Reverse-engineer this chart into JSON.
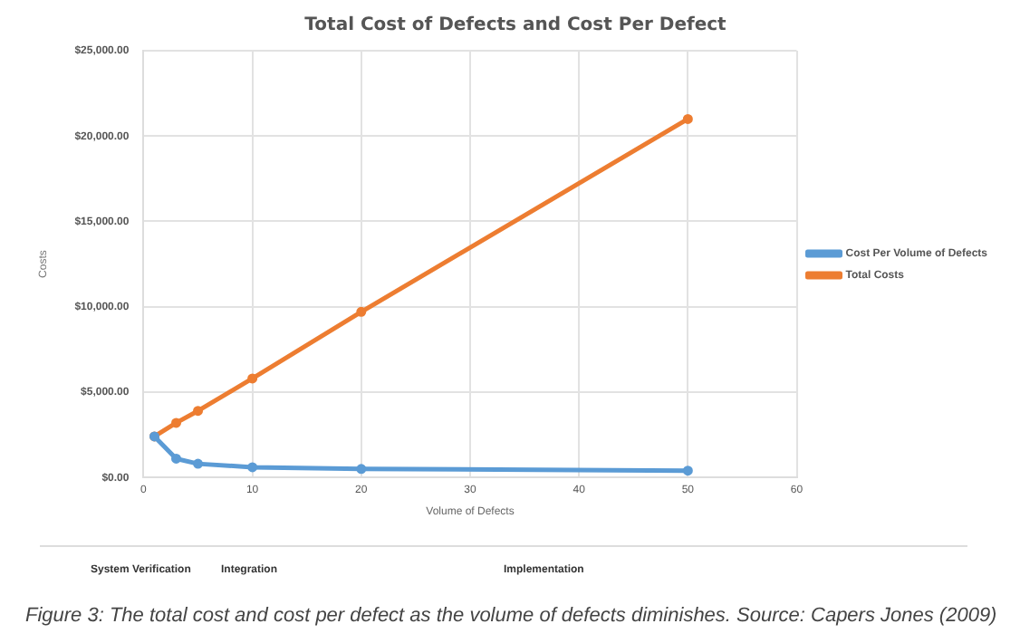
{
  "chart_data": {
    "type": "line",
    "title": "Total Cost of Defects and Cost Per Defect",
    "xlabel": "Volume of Defects",
    "ylabel": "Costs",
    "x": [
      1,
      3,
      5,
      10,
      20,
      50
    ],
    "series": [
      {
        "name": "Cost Per Volume of Defects",
        "color": "#5b9bd5",
        "values": [
          2400,
          1100,
          800,
          600,
          500,
          400
        ]
      },
      {
        "name": "Total Costs",
        "color": "#ed7d31",
        "values": [
          2400,
          3200,
          3900,
          5800,
          9700,
          21000
        ]
      }
    ],
    "xlim": [
      0,
      60
    ],
    "xticks": [
      0,
      10,
      20,
      30,
      40,
      50,
      60
    ],
    "ylim": [
      0,
      25000
    ],
    "yticks": [
      {
        "value": 0,
        "label": "$0.00"
      },
      {
        "value": 5000,
        "label": "$5,000.00"
      },
      {
        "value": 10000,
        "label": "$10,000.00"
      },
      {
        "value": 15000,
        "label": "$15,000.00"
      },
      {
        "value": 20000,
        "label": "$20,000.00"
      },
      {
        "value": 25000,
        "label": "$25,000.00"
      }
    ],
    "grid": true,
    "legend": "right",
    "marker": "circle",
    "line_style": "solid",
    "annotations": [
      "System Verification",
      "Integration",
      "Implementation",
      "Figure 3: The total cost and cost per defect as the volume of defects diminishes. Source: Capers Jones (2009)"
    ]
  }
}
